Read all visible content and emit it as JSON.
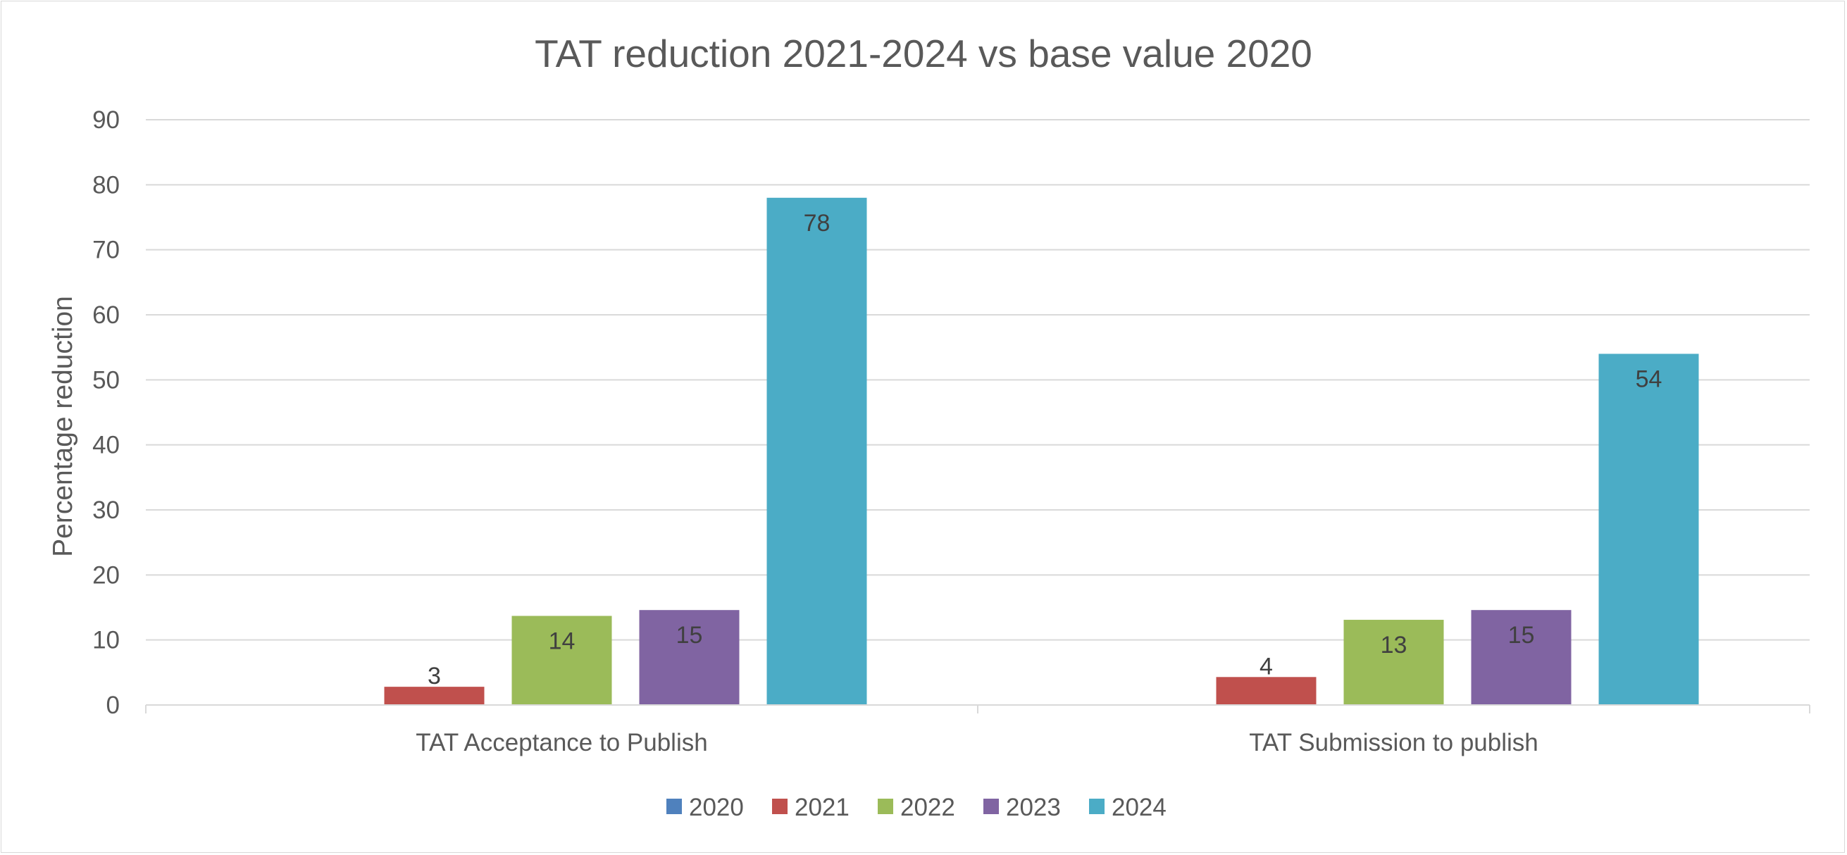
{
  "chart_data": {
    "type": "bar",
    "title": "TAT reduction 2021-2024 vs base value 2020",
    "xlabel": "",
    "ylabel": "Percentage reduction",
    "ylim": [
      0,
      90
    ],
    "yticks": [
      0,
      10,
      20,
      30,
      40,
      50,
      60,
      70,
      80,
      90
    ],
    "grid": true,
    "legend_position": "bottom",
    "categories": [
      "TAT Acceptance to Publish",
      "TAT Submission to publish"
    ],
    "series": [
      {
        "name": "2020",
        "color": "#4f81bd",
        "values": [
          0,
          0
        ],
        "labels": [
          "",
          ""
        ]
      },
      {
        "name": "2021",
        "color": "#c0504d",
        "values": [
          2.8,
          4.3
        ],
        "labels": [
          "3",
          "4"
        ]
      },
      {
        "name": "2022",
        "color": "#9bbb59",
        "values": [
          13.7,
          13.1
        ],
        "labels": [
          "14",
          "13"
        ]
      },
      {
        "name": "2023",
        "color": "#8064a2",
        "values": [
          14.6,
          14.6
        ],
        "labels": [
          "15",
          "15"
        ]
      },
      {
        "name": "2024",
        "color": "#4bacc6",
        "values": [
          78,
          54
        ],
        "labels": [
          "78",
          "54"
        ]
      }
    ]
  }
}
